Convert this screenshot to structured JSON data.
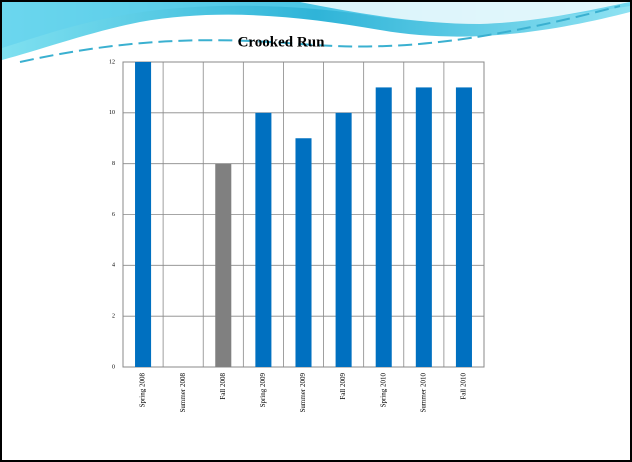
{
  "chart_data": {
    "type": "bar",
    "title": "Crooked Run",
    "categories": [
      "Spring 2008",
      "Summer 2008",
      "Fall 2008",
      "Spring 2009",
      "Summer 2009",
      "Fall 2009",
      "Spring 2010",
      "Summer 2010",
      "Fall 2010"
    ],
    "values": [
      12,
      0,
      8,
      10,
      9,
      10,
      11,
      11,
      11
    ],
    "colors": [
      "#0070c0",
      "#0070c0",
      "#808080",
      "#0070c0",
      "#0070c0",
      "#0070c0",
      "#0070c0",
      "#0070c0",
      "#0070c0"
    ],
    "ylim": [
      0,
      12
    ],
    "yticks": [
      0,
      2,
      4,
      6,
      8,
      10,
      12
    ],
    "grid": true
  }
}
